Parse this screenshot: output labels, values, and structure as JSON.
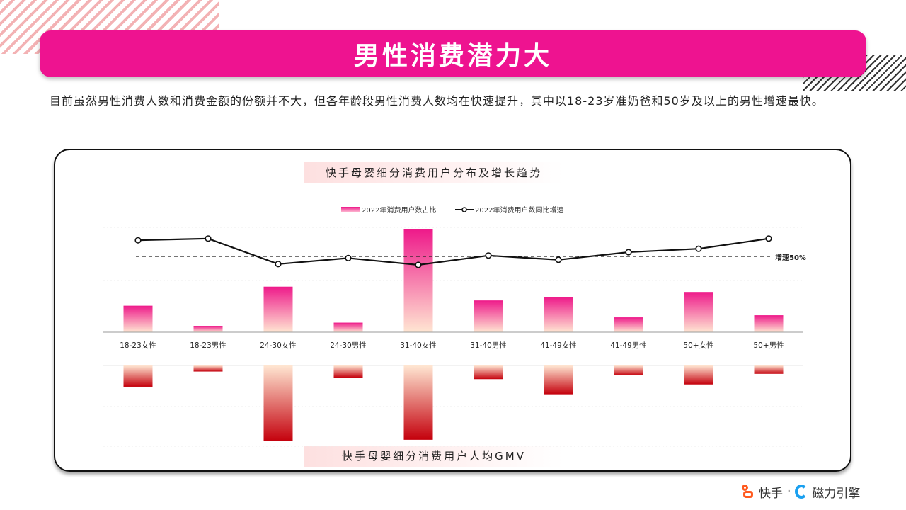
{
  "header": {
    "title": "男性消费潜力大"
  },
  "intro": {
    "text": "目前虽然男性消费人数和消费金额的份额并不大，但各年龄段男性消费人数均在快速提升，其中以18-23岁准奶爸和50岁及以上的男性增速最快。"
  },
  "chart_titles": {
    "top": "快手母婴细分消费用户分布及增长趋势",
    "bottom": "快手母婴细分消费用户人均GMV"
  },
  "logos": {
    "kuaishou": "快手",
    "separator": "·",
    "cili": "磁力引擎"
  },
  "colors": {
    "accent": "#ee1390",
    "bar_top_pink": "#ee1a8a",
    "bar_bottom_red": "#c4000c",
    "line": "#111111"
  },
  "chart_data": [
    {
      "type": "bar+line",
      "title": "快手母婴细分消费用户分布及增长趋势",
      "categories": [
        "18-23女性",
        "18-23男性",
        "24-30女性",
        "24-30男性",
        "31-40女性",
        "31-40男性",
        "41-49女性",
        "41-49男性",
        "50+女性",
        "50+男性"
      ],
      "series": [
        {
          "name": "2022年消费用户数占比",
          "kind": "bar",
          "values": [
            25,
            6,
            43,
            9,
            97,
            30,
            33,
            14,
            38,
            16
          ]
        },
        {
          "name": "2022年消费用户数同比增速",
          "kind": "line",
          "values": [
            69,
            71,
            41,
            48,
            40,
            51,
            46,
            55,
            59,
            71
          ]
        }
      ],
      "reference_line": {
        "value": 50,
        "label": "增速50%"
      },
      "legend_position": "top-center",
      "grid": true
    },
    {
      "type": "bar",
      "title": "快手母婴细分消费用户人均GMV",
      "orientation": "downward",
      "categories": [
        "18-23女性",
        "18-23男性",
        "24-30女性",
        "24-30男性",
        "31-40女性",
        "31-40男性",
        "41-49女性",
        "41-49男性",
        "50+女性",
        "50+男性"
      ],
      "values": [
        28,
        8,
        100,
        16,
        98,
        18,
        38,
        13,
        25,
        11
      ],
      "grid": true
    }
  ]
}
